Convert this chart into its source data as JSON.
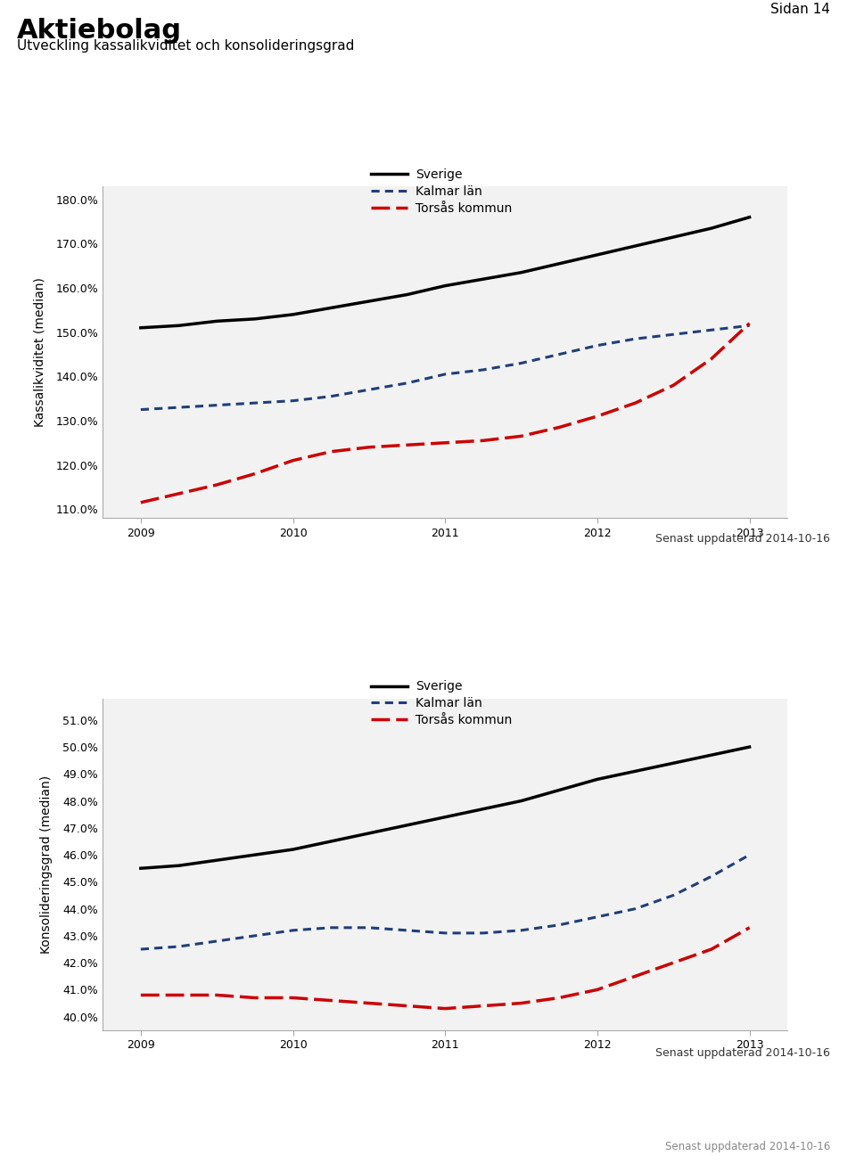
{
  "title": "Aktiebolag",
  "subtitle": "Utveckling kassalikviditet och konsolideringsgrad",
  "page_label": "Sidan 14",
  "update_label": "Senast uppdaterad 2014-10-16",
  "chart1": {
    "ylabel": "Kassalikviditet (median)",
    "years": [
      2009,
      2009.25,
      2009.5,
      2009.75,
      2010,
      2010.25,
      2010.5,
      2010.75,
      2011,
      2011.25,
      2011.5,
      2011.75,
      2012,
      2012.25,
      2012.5,
      2012.75,
      2013
    ],
    "sverige": [
      151.0,
      151.5,
      152.5,
      153.0,
      154.0,
      155.5,
      157.0,
      158.5,
      160.5,
      162.0,
      163.5,
      165.5,
      167.5,
      169.5,
      171.5,
      173.5,
      176.0
    ],
    "kalmar": [
      132.5,
      133.0,
      133.5,
      134.0,
      134.5,
      135.5,
      137.0,
      138.5,
      140.5,
      141.5,
      143.0,
      145.0,
      147.0,
      148.5,
      149.5,
      150.5,
      151.5
    ],
    "torsas": [
      111.5,
      113.5,
      115.5,
      118.0,
      121.0,
      123.0,
      124.0,
      124.5,
      125.0,
      125.5,
      126.5,
      128.5,
      131.0,
      134.0,
      138.0,
      144.0,
      152.0
    ],
    "ylim": [
      108.0,
      183.0
    ],
    "yticks": [
      110.0,
      120.0,
      130.0,
      140.0,
      150.0,
      160.0,
      170.0,
      180.0
    ]
  },
  "chart2": {
    "ylabel": "Konsolideringsgrad (median)",
    "years": [
      2009,
      2009.25,
      2009.5,
      2009.75,
      2010,
      2010.25,
      2010.5,
      2010.75,
      2011,
      2011.25,
      2011.5,
      2011.75,
      2012,
      2012.25,
      2012.5,
      2012.75,
      2013
    ],
    "sverige": [
      45.5,
      45.6,
      45.8,
      46.0,
      46.2,
      46.5,
      46.8,
      47.1,
      47.4,
      47.7,
      48.0,
      48.4,
      48.8,
      49.1,
      49.4,
      49.7,
      50.0
    ],
    "kalmar": [
      42.5,
      42.6,
      42.8,
      43.0,
      43.2,
      43.3,
      43.3,
      43.2,
      43.1,
      43.1,
      43.2,
      43.4,
      43.7,
      44.0,
      44.5,
      45.2,
      46.0
    ],
    "torsas": [
      40.8,
      40.8,
      40.8,
      40.7,
      40.7,
      40.6,
      40.5,
      40.4,
      40.3,
      40.4,
      40.5,
      40.7,
      41.0,
      41.5,
      42.0,
      42.5,
      43.3
    ],
    "ylim": [
      39.5,
      51.8
    ],
    "yticks": [
      40.0,
      41.0,
      42.0,
      43.0,
      44.0,
      45.0,
      46.0,
      47.0,
      48.0,
      49.0,
      50.0,
      51.0
    ]
  },
  "legend_labels": [
    "Sverige",
    "Kalmar län",
    "Torsås kommun"
  ],
  "color_sverige": "#000000",
  "color_kalmar": "#1F3F7A",
  "color_torsas": "#CC0000",
  "plot_bg_color": "#F2F2F2",
  "xlim": [
    2008.75,
    2013.25
  ],
  "xticks": [
    2009,
    2010,
    2011,
    2012,
    2013
  ]
}
